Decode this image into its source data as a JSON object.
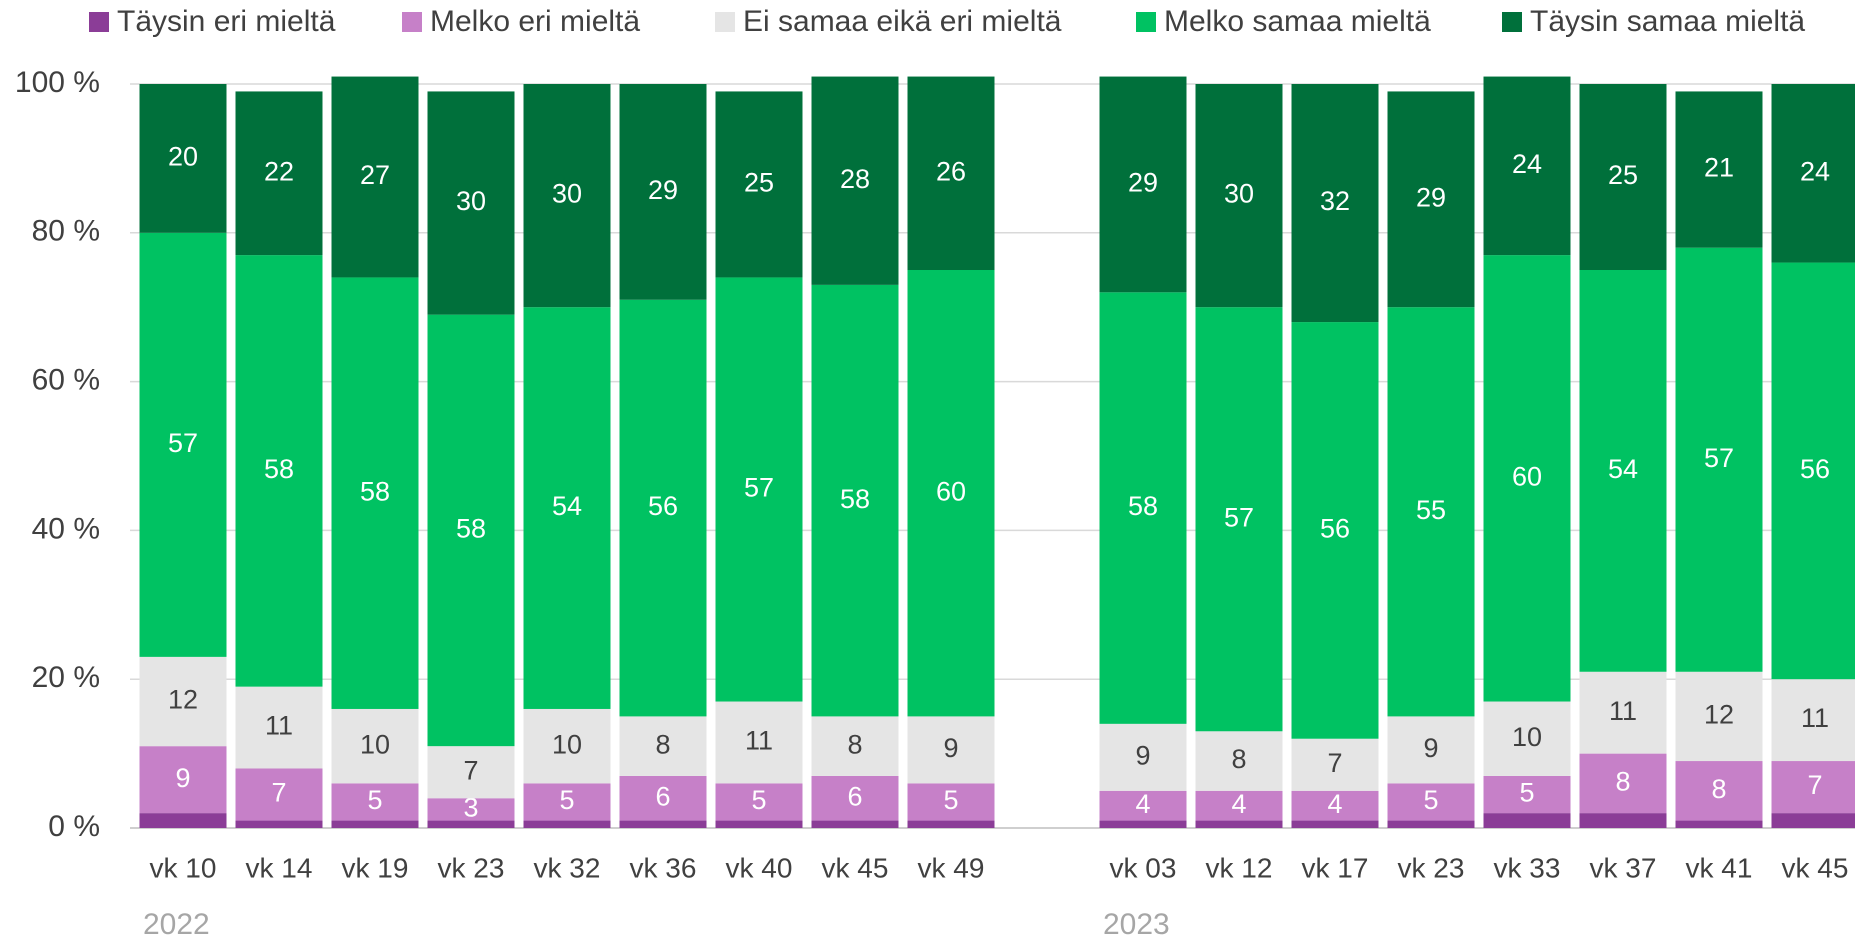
{
  "chart_data": {
    "type": "stacked_bar",
    "categories": [
      "vk 10",
      "vk 14",
      "vk 19",
      "vk 23",
      "vk 32",
      "vk 36",
      "vk 40",
      "vk 45",
      "vk 49",
      null,
      "vk 03",
      "vk 12",
      "vk 17",
      "vk 23",
      "vk 33",
      "vk 37",
      "vk 41",
      "vk 45"
    ],
    "group_labels": [
      "2022",
      "2023"
    ],
    "series": [
      {
        "name": "Täysin eri mieltä",
        "color": "#8b3d97",
        "show_labels": false,
        "label_color": "#ffffff",
        "values": [
          2,
          1,
          1,
          1,
          1,
          1,
          1,
          1,
          1,
          null,
          1,
          1,
          1,
          1,
          2,
          2,
          1,
          2
        ]
      },
      {
        "name": "Melko eri mieltä",
        "color": "#c680c8",
        "show_labels": true,
        "label_color": "#ffffff",
        "values": [
          9,
          7,
          5,
          3,
          5,
          6,
          5,
          6,
          5,
          null,
          4,
          4,
          4,
          5,
          5,
          8,
          8,
          7
        ]
      },
      {
        "name": "Ei samaa eikä eri mieltä",
        "color": "#e5e5e5",
        "show_labels": true,
        "label_color": "#404040",
        "values": [
          12,
          11,
          10,
          7,
          10,
          8,
          11,
          8,
          9,
          null,
          9,
          8,
          7,
          9,
          10,
          11,
          12,
          11
        ]
      },
      {
        "name": "Melko samaa mieltä",
        "color": "#00c262",
        "show_labels": true,
        "label_color": "#ffffff",
        "values": [
          57,
          58,
          58,
          58,
          54,
          56,
          57,
          58,
          60,
          null,
          58,
          57,
          56,
          55,
          60,
          54,
          57,
          56
        ]
      },
      {
        "name": "Täysin samaa mieltä",
        "color": "#00703b",
        "show_labels": true,
        "label_color": "#ffffff",
        "values": [
          20,
          22,
          27,
          30,
          30,
          29,
          25,
          28,
          26,
          null,
          29,
          30,
          32,
          29,
          24,
          25,
          21,
          24
        ]
      }
    ],
    "ylim": [
      0,
      100
    ],
    "yticks": [
      {
        "value": 0,
        "label": "0 %"
      },
      {
        "value": 20,
        "label": "20 %"
      },
      {
        "value": 40,
        "label": "40 %"
      },
      {
        "value": 60,
        "label": "60 %"
      },
      {
        "value": 80,
        "label": "80 %"
      },
      {
        "value": 100,
        "label": "100 %"
      }
    ],
    "grid": true,
    "legend": "top"
  }
}
